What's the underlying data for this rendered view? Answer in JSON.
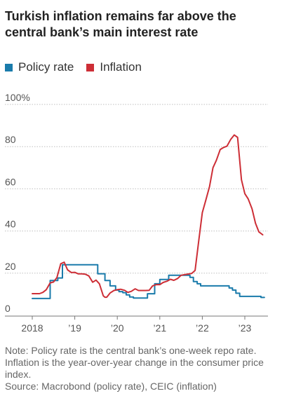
{
  "title": "Turkish inflation remains far above the central bank’s main interest rate",
  "legend": [
    {
      "label": "Policy rate",
      "color": "#1a7bab"
    },
    {
      "label": "Inflation",
      "color": "#cd2e36"
    }
  ],
  "notes": {
    "note": "Note: Policy rate is the central bank’s one-week repo rate. Inflation is the year-over-year change in the consumer price index.",
    "source": "Source: Macrobond (policy rate), CEIC (inflation)"
  },
  "chart_data": {
    "type": "line",
    "title": "Turkish inflation remains far above the central bank’s main interest rate",
    "ylim": [
      0,
      100
    ],
    "xlim": [
      2017.95,
      2023.5
    ],
    "y_ticks": [
      {
        "value": 0,
        "label": "0"
      },
      {
        "value": 20,
        "label": "20"
      },
      {
        "value": 40,
        "label": "40"
      },
      {
        "value": 60,
        "label": "60"
      },
      {
        "value": 80,
        "label": "80"
      },
      {
        "value": 100,
        "label": "100%"
      }
    ],
    "x_ticks": [
      {
        "value": 2018,
        "label": "2018"
      },
      {
        "value": 2019,
        "label": "’19"
      },
      {
        "value": 2020,
        "label": "’20"
      },
      {
        "value": 2021,
        "label": "’21"
      },
      {
        "value": 2022,
        "label": "’22"
      },
      {
        "value": 2023,
        "label": "’23"
      }
    ],
    "grid": true,
    "legend_position": "top-left",
    "series": [
      {
        "name": "Policy rate",
        "color": "#1a7bab",
        "step": true,
        "x": [
          2018.0,
          2018.42,
          2018.6,
          2018.71,
          2019.54,
          2019.71,
          2019.83,
          2019.96,
          2020.04,
          2020.13,
          2020.21,
          2020.29,
          2020.38,
          2020.46,
          2020.71,
          2020.88,
          2021.0,
          2021.21,
          2021.71,
          2021.79,
          2021.88,
          2021.96,
          2022.63,
          2022.71,
          2022.79,
          2022.88,
          2023.38,
          2023.46
        ],
        "y": [
          8,
          16.5,
          17.75,
          24,
          19.75,
          16.5,
          14,
          12,
          11.25,
          10.75,
          9.75,
          8.75,
          8.25,
          8.25,
          10.25,
          15,
          17,
          19,
          18,
          16,
          15,
          14,
          13,
          12,
          10.5,
          9,
          8.5,
          8.5
        ]
      },
      {
        "name": "Inflation",
        "color": "#cd2e36",
        "x": [
          2018.0,
          2018.17,
          2018.25,
          2018.33,
          2018.42,
          2018.5,
          2018.58,
          2018.67,
          2018.75,
          2018.83,
          2018.92,
          2019.0,
          2019.08,
          2019.17,
          2019.25,
          2019.33,
          2019.42,
          2019.5,
          2019.58,
          2019.67,
          2019.71,
          2019.75,
          2019.83,
          2019.92,
          2020.0,
          2020.08,
          2020.17,
          2020.25,
          2020.33,
          2020.42,
          2020.5,
          2020.58,
          2020.67,
          2020.75,
          2020.83,
          2020.92,
          2021.0,
          2021.08,
          2021.17,
          2021.25,
          2021.33,
          2021.42,
          2021.5,
          2021.58,
          2021.67,
          2021.75,
          2021.83,
          2021.92,
          2022.0,
          2022.08,
          2022.17,
          2022.25,
          2022.33,
          2022.42,
          2022.5,
          2022.58,
          2022.67,
          2022.75,
          2022.83,
          2022.92,
          2023.0,
          2023.08,
          2023.17,
          2023.25,
          2023.33,
          2023.42
        ],
        "y": [
          10.3,
          10.3,
          10.9,
          12.2,
          15.4,
          15.8,
          17.9,
          24.5,
          25.2,
          21.6,
          20.3,
          20.4,
          19.7,
          19.7,
          19.5,
          18.7,
          15.7,
          16.7,
          15,
          9.3,
          8.6,
          8.6,
          10.6,
          11.8,
          12.2,
          12.4,
          11.9,
          10.9,
          11.4,
          12.6,
          11.8,
          11.8,
          11.8,
          11.9,
          14,
          14.6,
          14.6,
          15.6,
          16.2,
          17.1,
          16.6,
          17.5,
          19,
          19.3,
          19.6,
          19.9,
          21.3,
          36.1,
          48.7,
          54.4,
          61.1,
          70,
          73.5,
          78.6,
          79.6,
          80.2,
          83.5,
          85.5,
          84.4,
          64.3,
          57.7,
          55.2,
          50.5,
          43.7,
          39.6,
          38.2
        ]
      }
    ]
  }
}
